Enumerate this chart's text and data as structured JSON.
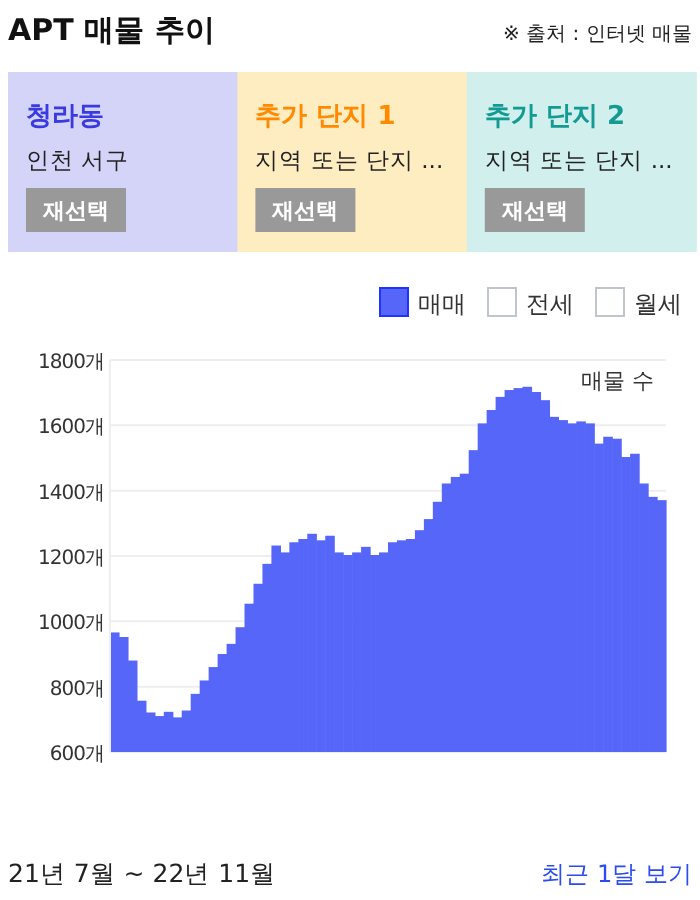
{
  "chart_data": {
    "type": "bar",
    "title": "APT 매물 추이",
    "subtitle": "※ 출처 : 인터넷 매물",
    "ylabel": "매물 수",
    "annotations": [
      "청라동",
      "인천 서구",
      "재선택",
      "추가 단지 1",
      "지역 또는 단지 ...",
      "재선택",
      "추가 단지 2",
      "지역 또는 단지 ...",
      "재선택",
      "전세",
      "월세",
      "21년 7월 ~ 22년 11월",
      "최근 1달 보기"
    ],
    "categories": [
      null,
      null,
      null,
      null,
      null,
      null,
      null,
      null,
      null,
      null,
      null,
      null,
      null,
      null,
      null,
      null,
      null,
      null,
      null,
      null,
      null,
      null,
      null,
      null,
      null,
      null,
      null,
      null,
      null,
      null,
      null,
      null,
      null,
      null,
      null,
      null,
      null,
      null,
      null,
      null,
      null,
      null,
      null,
      null,
      null,
      null,
      null,
      null,
      null,
      null,
      null,
      null,
      null,
      null,
      null,
      null,
      null,
      null,
      null,
      null,
      null,
      null
    ],
    "series": [
      {
        "name": "매매",
        "color": "#5566f8",
        "values": [
          966,
          952,
          880,
          757,
          721,
          710,
          723,
          706,
          727,
          778,
          819,
          860,
          900,
          931,
          982,
          1054,
          1115,
          1176,
          1232,
          1211,
          1242,
          1252,
          1268,
          1248,
          1262,
          1211,
          1203,
          1211,
          1228,
          1203,
          1211,
          1242,
          1248,
          1252,
          1279,
          1313,
          1366,
          1422,
          1442,
          1452,
          1524,
          1606,
          1647,
          1687,
          1708,
          1714,
          1718,
          1702,
          1677,
          1626,
          1616,
          1606,
          1612,
          1606,
          1544,
          1565,
          1559,
          1503,
          1513,
          1422,
          1381,
          1371
        ]
      }
    ],
    "ylim": [
      600,
      1800
    ],
    "yticks": [
      {
        "value": 600,
        "label": "600개"
      },
      {
        "value": 800,
        "label": "800개"
      },
      {
        "value": 1000,
        "label": "1000개"
      },
      {
        "value": 1200,
        "label": "1200개"
      },
      {
        "value": 1400,
        "label": "1400개"
      },
      {
        "value": 1600,
        "label": "1600개"
      },
      {
        "value": 1800,
        "label": "1800개"
      }
    ],
    "grid": "y",
    "legend": "top right"
  }
}
